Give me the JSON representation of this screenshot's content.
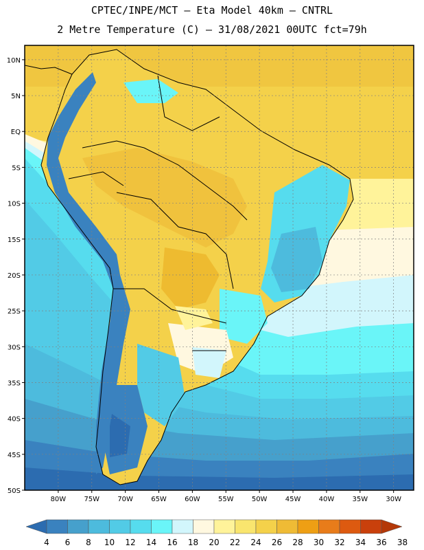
{
  "title_line1": "CPTEC/INPE/MCT –  Eta Model 40km – CNTRL",
  "title_line2": "2 Metre Temperature (C) – 31/08/2021 00UTC fct=79h",
  "map": {
    "projection": "lat-lon",
    "lon_range": [
      -85,
      -27
    ],
    "lat_range": [
      -50,
      12
    ],
    "lat_ticks": [
      "10N",
      "5N",
      "EQ",
      "5S",
      "10S",
      "15S",
      "20S",
      "25S",
      "30S",
      "35S",
      "40S",
      "45S",
      "50S"
    ],
    "lon_ticks": [
      "80W",
      "75W",
      "70W",
      "65W",
      "60W",
      "55W",
      "50W",
      "45W",
      "40W",
      "35W",
      "30W"
    ],
    "field": "2m temperature",
    "units": "C"
  },
  "colorbar": {
    "labels": [
      "4",
      "6",
      "8",
      "10",
      "12",
      "14",
      "16",
      "18",
      "20",
      "22",
      "24",
      "26",
      "28",
      "30",
      "32",
      "34",
      "36",
      "38"
    ],
    "colors": [
      "#2c6cb0",
      "#3a82bf",
      "#46a0cc",
      "#4dbbdd",
      "#52cbe6",
      "#56dcee",
      "#6af5f8",
      "#d2f6fc",
      "#fff8e0",
      "#fff39a",
      "#f9e56e",
      "#f4d14a",
      "#efbb35",
      "#ee9f14",
      "#e87c1a",
      "#dd5a10",
      "#c9400c",
      "#b43808"
    ]
  }
}
